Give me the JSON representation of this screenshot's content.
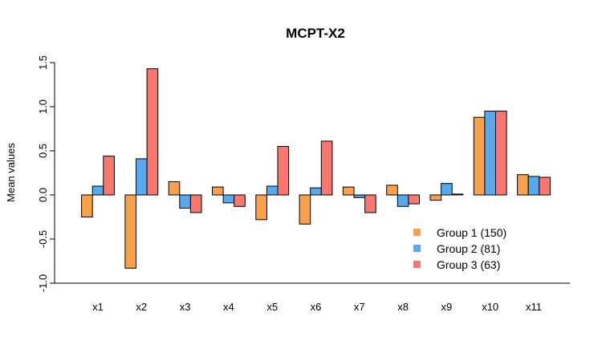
{
  "chart_data": {
    "type": "bar",
    "title": "MCPT-X2",
    "xlabel": "",
    "ylabel": "Mean values",
    "ylim": [
      -1.0,
      1.5
    ],
    "yticks": [
      "-1.0",
      "-0.5",
      "0.0",
      "0.5",
      "1.0",
      "1.5"
    ],
    "categories": [
      "x1",
      "x2",
      "x3",
      "x4",
      "x5",
      "x6",
      "x7",
      "x8",
      "x9",
      "x10",
      "x11"
    ],
    "series": [
      {
        "name": "Group 1 (150)",
        "color": "#F9A04A",
        "values": [
          -0.25,
          -0.83,
          0.15,
          0.09,
          -0.28,
          -0.33,
          0.09,
          0.11,
          -0.06,
          0.88,
          0.23
        ]
      },
      {
        "name": "Group 2 (81)",
        "color": "#58A8EC",
        "values": [
          0.1,
          0.41,
          -0.15,
          -0.09,
          0.1,
          0.08,
          -0.03,
          -0.13,
          0.13,
          0.95,
          0.21
        ]
      },
      {
        "name": "Group 3 (63)",
        "color": "#F8786F",
        "values": [
          0.44,
          1.43,
          -0.2,
          -0.13,
          0.55,
          0.61,
          -0.2,
          -0.1,
          0.01,
          0.95,
          0.2
        ]
      }
    ],
    "legend": "bottom-right",
    "grid": false
  }
}
